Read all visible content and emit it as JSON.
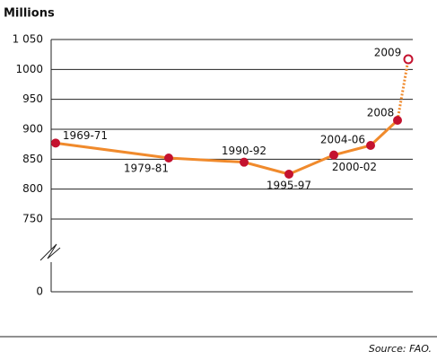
{
  "chart_data": {
    "type": "line",
    "y_axis_label": "Millions",
    "categories": [
      "1969-71",
      "1979-81",
      "1990-92",
      "1995-97",
      "2000-02",
      "2004-06",
      "2008",
      "2009"
    ],
    "values": [
      877,
      852,
      845,
      825,
      857,
      873,
      915,
      1017
    ],
    "color": "#f08a2c",
    "marker_color": "#c4122f",
    "ylim": [
      0,
      1050
    ],
    "yticks": [
      0,
      750,
      800,
      850,
      900,
      950,
      1000,
      {
        "value": 1050,
        "label": "1 050"
      }
    ],
    "grid": true,
    "axis_break": true
  },
  "source": "Source: FAO."
}
